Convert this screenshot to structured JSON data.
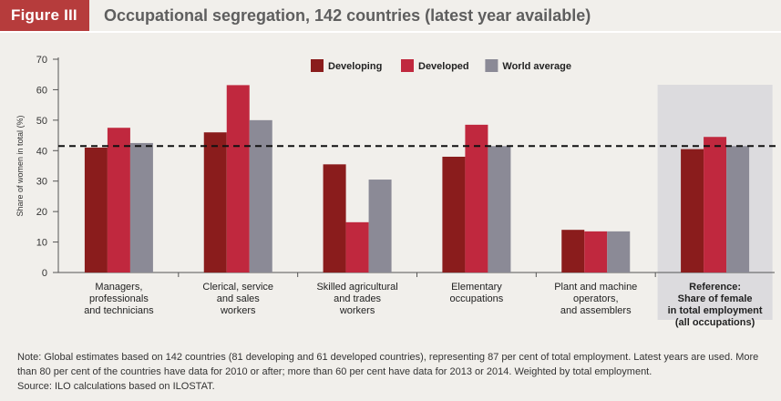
{
  "header": {
    "figure_label": "Figure III",
    "title": "Occupational segregation, 142 countries (latest year available)"
  },
  "chart_data": {
    "type": "bar",
    "ylabel": "Share of women in total (%)",
    "xlabel": "",
    "ylim": [
      0,
      70
    ],
    "yticks": [
      0,
      10,
      20,
      30,
      40,
      50,
      60,
      70
    ],
    "reference_line": 41.5,
    "legend_position": "top-right",
    "categories": [
      {
        "lines": [
          "Managers,",
          "professionals",
          "and technicians"
        ],
        "bold": false
      },
      {
        "lines": [
          "Clerical, service",
          "and sales",
          "workers"
        ],
        "bold": false
      },
      {
        "lines": [
          "Skilled agricultural",
          "and trades",
          "workers"
        ],
        "bold": false
      },
      {
        "lines": [
          "Elementary",
          "occupations"
        ],
        "bold": false
      },
      {
        "lines": [
          "Plant and machine",
          "operators,",
          "and assemblers"
        ],
        "bold": false
      },
      {
        "lines": [
          "Reference:",
          "Share of female",
          "in total employment",
          "(all occupations)"
        ],
        "bold": true
      }
    ],
    "series": [
      {
        "name": "Developing",
        "color": "#8a1c1c",
        "values": [
          41,
          46,
          35.5,
          38,
          14,
          40.5
        ]
      },
      {
        "name": "Developed",
        "color": "#c0283e",
        "values": [
          47.5,
          61.5,
          16.5,
          48.5,
          13.5,
          44.5
        ]
      },
      {
        "name": "World average",
        "color": "#8b8a96",
        "values": [
          42.5,
          50,
          30.5,
          41.5,
          13.5,
          41.5
        ]
      }
    ],
    "highlight_category_index": 5,
    "highlight_color": "#dcdbde"
  },
  "footer": {
    "note": "Note: Global estimates based on 142 countries (81 developing and 61 developed countries), representing 87 per cent of total employment. Latest years are used. More than 80 per cent of the countries have data for 2010 or after; more than 60 per cent have data for 2013 or 2014. Weighted by total employment.",
    "source": "Source: ILO calculations based on ILOSTAT."
  }
}
